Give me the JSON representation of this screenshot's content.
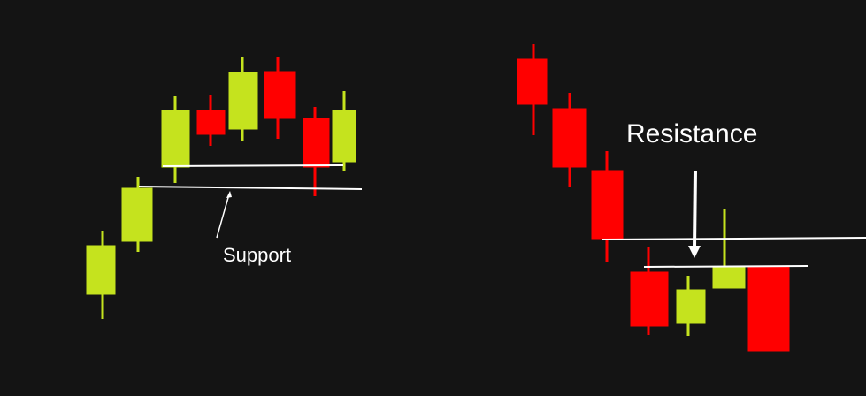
{
  "labels": {
    "support": "Support",
    "resistance": "Resistance"
  }
}
